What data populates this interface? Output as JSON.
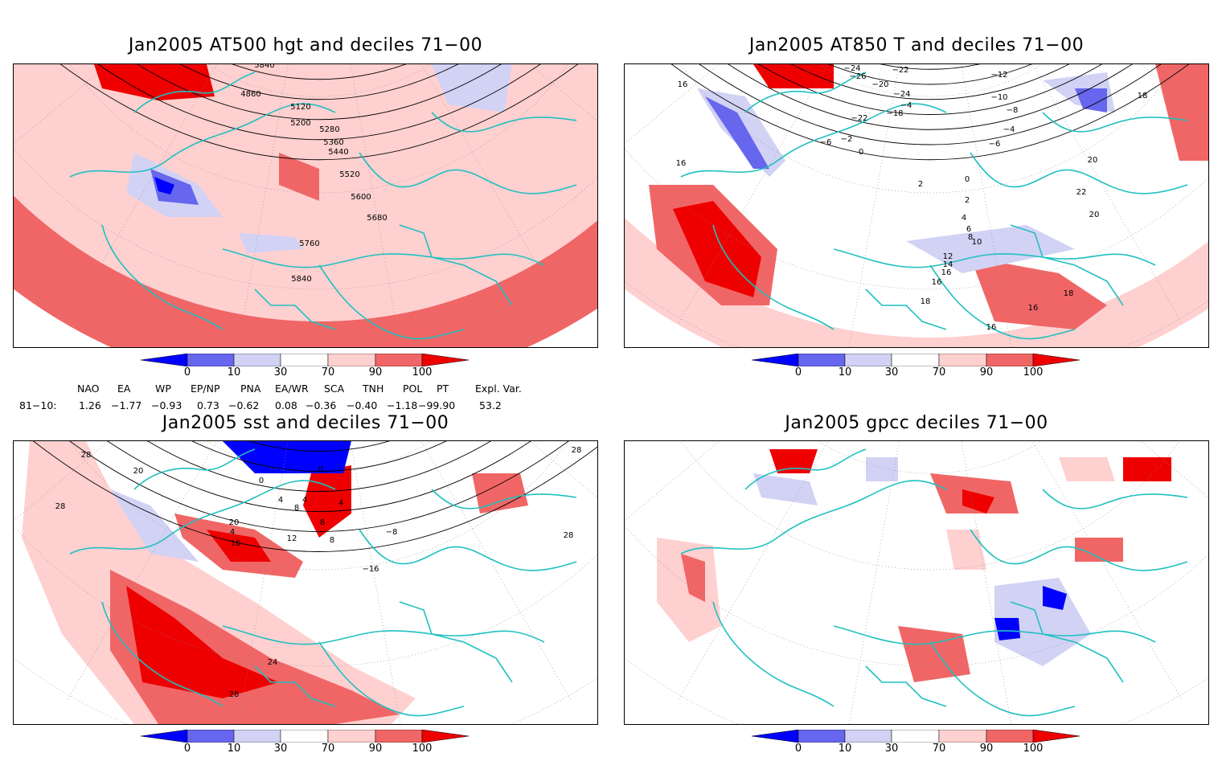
{
  "panels": [
    {
      "id": "p1",
      "title": "Jan2005 AT500 hgt and deciles 71−00",
      "contour_labels": [
        "5840",
        "4860",
        "5120",
        "5200",
        "5280",
        "5360",
        "5440",
        "5520",
        "5600",
        "5680",
        "5760",
        "5840"
      ]
    },
    {
      "id": "p2",
      "title": "Jan2005 AT850 T and deciles 71−00",
      "contour_labels": [
        "16",
        "−24",
        "−26",
        "−22",
        "−24",
        "−12",
        "−10",
        "−20",
        "−22",
        "−18",
        "−4",
        "−8",
        "−4",
        "−6",
        "−6",
        "−2",
        "0",
        "2",
        "16",
        "0",
        "2",
        "4",
        "6",
        "8",
        "10",
        "12",
        "14",
        "16",
        "16",
        "18",
        "20",
        "22",
        "20",
        "18",
        "16",
        "16",
        "18"
      ]
    },
    {
      "id": "p3",
      "title": "Jan2005 sst and deciles 71−00",
      "contour_labels": [
        "28",
        "20",
        "0",
        "0",
        "4",
        "4",
        "8",
        "8",
        "4",
        "20",
        "4",
        "16",
        "12",
        "8",
        "−8",
        "−16",
        "28",
        "28",
        "24",
        "28",
        "28"
      ]
    },
    {
      "id": "p4",
      "title": "Jan2005 gpcc deciles 71−00",
      "contour_labels": []
    }
  ],
  "colorbar": {
    "ticks": [
      "0",
      "10",
      "30",
      "70",
      "90",
      "100"
    ],
    "colors": [
      "#0000ff",
      "#6666ee",
      "#d2d2f5",
      "#ffffff",
      "#ffd0d0",
      "#f06666",
      "#ee0000"
    ]
  },
  "indices": {
    "headers": [
      "NAO",
      "EA",
      "WP",
      "EP/NP",
      "PNA",
      "EA/WR",
      "SCA",
      "TNH",
      "POL",
      "PT",
      "Expl. Var."
    ],
    "row_label": "81−10:",
    "values": [
      "1.26",
      "−1.77",
      "−0.93",
      "0.73",
      "−0.62",
      "0.08",
      "−0.36",
      "−0.40",
      "−1.18",
      "−99.90",
      "53.2"
    ]
  },
  "colors": {
    "coast": "#20c0c0",
    "contour": "#000000",
    "grid": "#888888"
  }
}
